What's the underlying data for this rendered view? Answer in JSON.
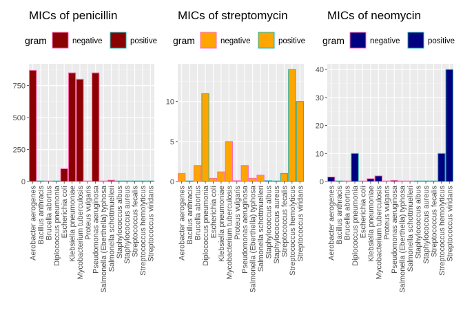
{
  "chart_data": [
    {
      "type": "bar",
      "title": "MICs of penicillin",
      "legend_title": "gram",
      "legend_labels": [
        "negative",
        "positive"
      ],
      "fill": "#8B0000",
      "categories": [
        "Aerobacter aerogenes",
        "Bacillus anthracis",
        "Brucella abortus",
        "Diplococcus pneumonia",
        "Escherichia coli",
        "Klebsiella pneumoniae",
        "Mycobacterium tuberculosis",
        "Proteus vulgaris",
        "Pseudomonas aeruginosa",
        "Salmonella (Eberthella) typhosa",
        "Salmonella schottmuelleri",
        "Staphylococcus albus",
        "Staphylococcus aureus",
        "Streptococcus fecalis",
        "Streptococcus hemolyticus",
        "Streptococcus viridans"
      ],
      "values": [
        870,
        0.001,
        1,
        0.005,
        100,
        850,
        800,
        3,
        850,
        1,
        10,
        0.007,
        0.03,
        1,
        0.001,
        0.005
      ],
      "gram": [
        "negative",
        "positive",
        "negative",
        "positive",
        "negative",
        "negative",
        "negative",
        "negative",
        "negative",
        "negative",
        "negative",
        "positive",
        "positive",
        "positive",
        "positive",
        "positive"
      ],
      "ylim": [
        0,
        920
      ],
      "yticks": [
        0,
        250,
        500,
        750
      ]
    },
    {
      "type": "bar",
      "title": "MICs of streptomycin",
      "legend_title": "gram",
      "legend_labels": [
        "negative",
        "positive"
      ],
      "fill": "#FFA500",
      "categories": [
        "Aerobacter aerogenes",
        "Bacillus anthracis",
        "Brucella abortus",
        "Diplococcus pneumonia",
        "Escherichia coli",
        "Klebsiella pneumoniae",
        "Mycobacterium tuberculosis",
        "Proteus vulgaris",
        "Pseudomonas aeruginosa",
        "Salmonella (Eberthella) typhosa",
        "Salmonella schottmuelleri",
        "Staphylococcus albus",
        "Staphylococcus aureus",
        "Streptococcus fecalis",
        "Streptococcus hemolyticus",
        "Streptococcus viridans"
      ],
      "values": [
        1,
        0.01,
        2,
        11,
        0.4,
        1.2,
        5,
        0.1,
        2,
        0.4,
        0.8,
        0.1,
        0.03,
        1,
        14,
        10
      ],
      "gram": [
        "negative",
        "positive",
        "negative",
        "positive",
        "negative",
        "negative",
        "negative",
        "negative",
        "negative",
        "negative",
        "negative",
        "positive",
        "positive",
        "positive",
        "positive",
        "positive"
      ],
      "ylim": [
        0,
        14.7
      ],
      "yticks": [
        0,
        5,
        10
      ]
    },
    {
      "type": "bar",
      "title": "MICs of neomycin",
      "legend_title": "gram",
      "legend_labels": [
        "negative",
        "positive"
      ],
      "fill": "#000080",
      "categories": [
        "Aerobacter aerogenes",
        "Bacillus anthracis",
        "Brucella abortus",
        "Diplococcus pneumonia",
        "Escherichia coli",
        "Klebsiella pneumoniae",
        "Mycobacterium tuberculosis",
        "Proteus vulgaris",
        "Pseudomonas aeruginosa",
        "Salmonella (Eberthella) typhosa",
        "Salmonella schottmuelleri",
        "Staphylococcus albus",
        "Staphylococcus aureus",
        "Streptococcus fecalis",
        "Streptococcus hemolyticus",
        "Streptococcus viridans"
      ],
      "values": [
        1.6,
        0.007,
        0.02,
        10,
        0.1,
        1,
        2,
        0.1,
        0.4,
        0.008,
        0.09,
        0.001,
        0.001,
        0.1,
        10,
        40
      ],
      "gram": [
        "negative",
        "positive",
        "negative",
        "positive",
        "negative",
        "negative",
        "negative",
        "negative",
        "negative",
        "negative",
        "negative",
        "positive",
        "positive",
        "positive",
        "positive",
        "positive"
      ],
      "ylim": [
        0,
        42
      ],
      "yticks": [
        0,
        10,
        20,
        30,
        40
      ]
    }
  ],
  "colors": {
    "panel_background": "#EBEBEB",
    "grid_major": "#FFFFFF",
    "negative_outline": "#FF69B4",
    "positive_outline": "#20B2AA",
    "text": "#000000",
    "tick_label": "#4D4D4D"
  }
}
